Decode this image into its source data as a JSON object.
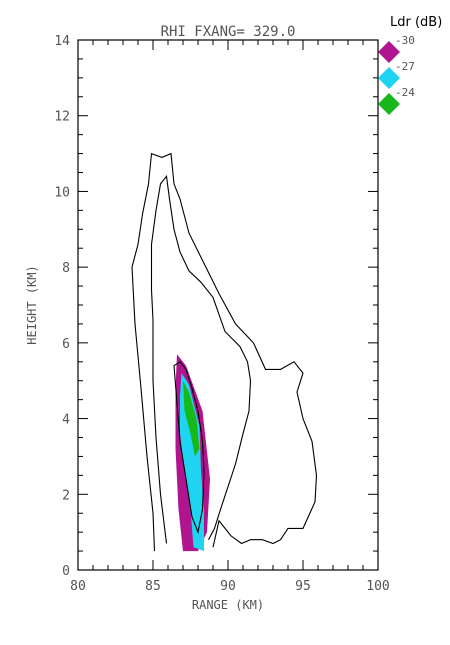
{
  "chart_data": {
    "type": "contour",
    "title": "RHI FXANG= 329.0",
    "xlabel": "RANGE (KM)",
    "ylabel": "HEIGHT (KM)",
    "xlim": [
      80,
      100
    ],
    "ylim": [
      0,
      14
    ],
    "x_ticks": [
      "80",
      "85",
      "90",
      "95",
      "100"
    ],
    "y_ticks": [
      "0",
      "2",
      "4",
      "6",
      "8",
      "10",
      "12",
      "14"
    ],
    "grid": false,
    "legend": {
      "title": "Ldr (dB)",
      "placement": "top-right",
      "entries": [
        {
          "label": "-30",
          "color": "#b0158f"
        },
        {
          "label": "-27",
          "color": "#1ed4f0"
        },
        {
          "label": "-24",
          "color": "#16b81c"
        }
      ]
    },
    "contours": [
      {
        "name": "outer",
        "points": [
          [
            85.1,
            0.5
          ],
          [
            85.0,
            1.5
          ],
          [
            84.6,
            3.0
          ],
          [
            84.2,
            4.8
          ],
          [
            83.8,
            6.5
          ],
          [
            83.6,
            8.0
          ],
          [
            84.0,
            8.6
          ],
          [
            84.3,
            9.4
          ],
          [
            84.7,
            10.2
          ],
          [
            84.9,
            11.0
          ],
          [
            85.6,
            10.9
          ],
          [
            86.2,
            11.0
          ],
          [
            86.4,
            10.2
          ],
          [
            86.8,
            9.8
          ],
          [
            87.4,
            8.9
          ],
          [
            88.4,
            8.1
          ],
          [
            89.4,
            7.3
          ],
          [
            90.5,
            6.5
          ],
          [
            91.7,
            6.0
          ],
          [
            92.5,
            5.3
          ],
          [
            93.5,
            5.3
          ],
          [
            94.4,
            5.5
          ],
          [
            95.0,
            5.2
          ],
          [
            94.6,
            4.7
          ],
          [
            95.0,
            4.0
          ],
          [
            95.6,
            3.4
          ],
          [
            95.9,
            2.5
          ],
          [
            95.8,
            1.8
          ],
          [
            95.0,
            1.1
          ],
          [
            94.0,
            1.1
          ],
          [
            93.5,
            0.8
          ],
          [
            93.0,
            0.7
          ],
          [
            92.3,
            0.8
          ],
          [
            91.5,
            0.8
          ],
          [
            90.9,
            0.7
          ],
          [
            90.2,
            0.9
          ],
          [
            89.4,
            1.3
          ],
          [
            89.0,
            0.6
          ]
        ]
      },
      {
        "name": "middle",
        "points": [
          [
            85.9,
            0.7
          ],
          [
            85.5,
            2.0
          ],
          [
            85.2,
            3.5
          ],
          [
            85.0,
            5.0
          ],
          [
            85.0,
            6.6
          ],
          [
            84.9,
            7.4
          ],
          [
            84.9,
            8.6
          ],
          [
            85.2,
            9.5
          ],
          [
            85.5,
            10.2
          ],
          [
            85.9,
            10.4
          ],
          [
            86.1,
            9.8
          ],
          [
            86.4,
            9.0
          ],
          [
            86.8,
            8.4
          ],
          [
            87.4,
            7.9
          ],
          [
            88.2,
            7.6
          ],
          [
            89.0,
            7.2
          ],
          [
            89.8,
            6.3
          ],
          [
            90.8,
            5.9
          ],
          [
            91.3,
            5.5
          ],
          [
            91.5,
            5.0
          ],
          [
            91.4,
            4.2
          ],
          [
            91.0,
            3.6
          ],
          [
            90.5,
            2.8
          ],
          [
            90.0,
            2.2
          ],
          [
            89.5,
            1.6
          ],
          [
            89.1,
            1.1
          ],
          [
            88.7,
            0.8
          ]
        ]
      },
      {
        "name": "inner",
        "points": [
          [
            86.4,
            5.4
          ],
          [
            86.6,
            4.4
          ],
          [
            86.8,
            3.4
          ],
          [
            87.2,
            2.4
          ],
          [
            87.6,
            1.4
          ],
          [
            88.0,
            1.0
          ],
          [
            88.3,
            1.6
          ],
          [
            88.4,
            2.6
          ],
          [
            88.3,
            3.4
          ],
          [
            88.0,
            4.2
          ],
          [
            87.6,
            4.8
          ],
          [
            87.2,
            5.3
          ],
          [
            86.8,
            5.5
          ]
        ]
      }
    ],
    "ldr_patches": [
      {
        "label": "-30",
        "points": [
          [
            86.6,
            5.7
          ],
          [
            87.2,
            5.4
          ],
          [
            88.3,
            4.2
          ],
          [
            88.8,
            2.4
          ],
          [
            88.6,
            1.0
          ],
          [
            88.0,
            0.5
          ],
          [
            87.0,
            0.5
          ],
          [
            86.7,
            1.6
          ],
          [
            86.5,
            3.2
          ],
          [
            86.5,
            4.8
          ]
        ]
      },
      {
        "label": "-27",
        "points": [
          [
            86.9,
            5.2
          ],
          [
            87.4,
            4.9
          ],
          [
            88.1,
            3.8
          ],
          [
            88.2,
            2.6
          ],
          [
            88.4,
            1.6
          ],
          [
            88.4,
            0.5
          ],
          [
            87.7,
            0.6
          ],
          [
            87.5,
            1.6
          ],
          [
            87.1,
            2.6
          ],
          [
            86.8,
            3.6
          ],
          [
            86.8,
            4.6
          ]
        ]
      },
      {
        "label": "-24",
        "points": [
          [
            87.0,
            5.0
          ],
          [
            87.4,
            4.7
          ],
          [
            87.9,
            4.0
          ],
          [
            88.1,
            3.2
          ],
          [
            87.8,
            3.0
          ],
          [
            87.5,
            3.6
          ],
          [
            87.1,
            4.2
          ]
        ]
      }
    ]
  }
}
